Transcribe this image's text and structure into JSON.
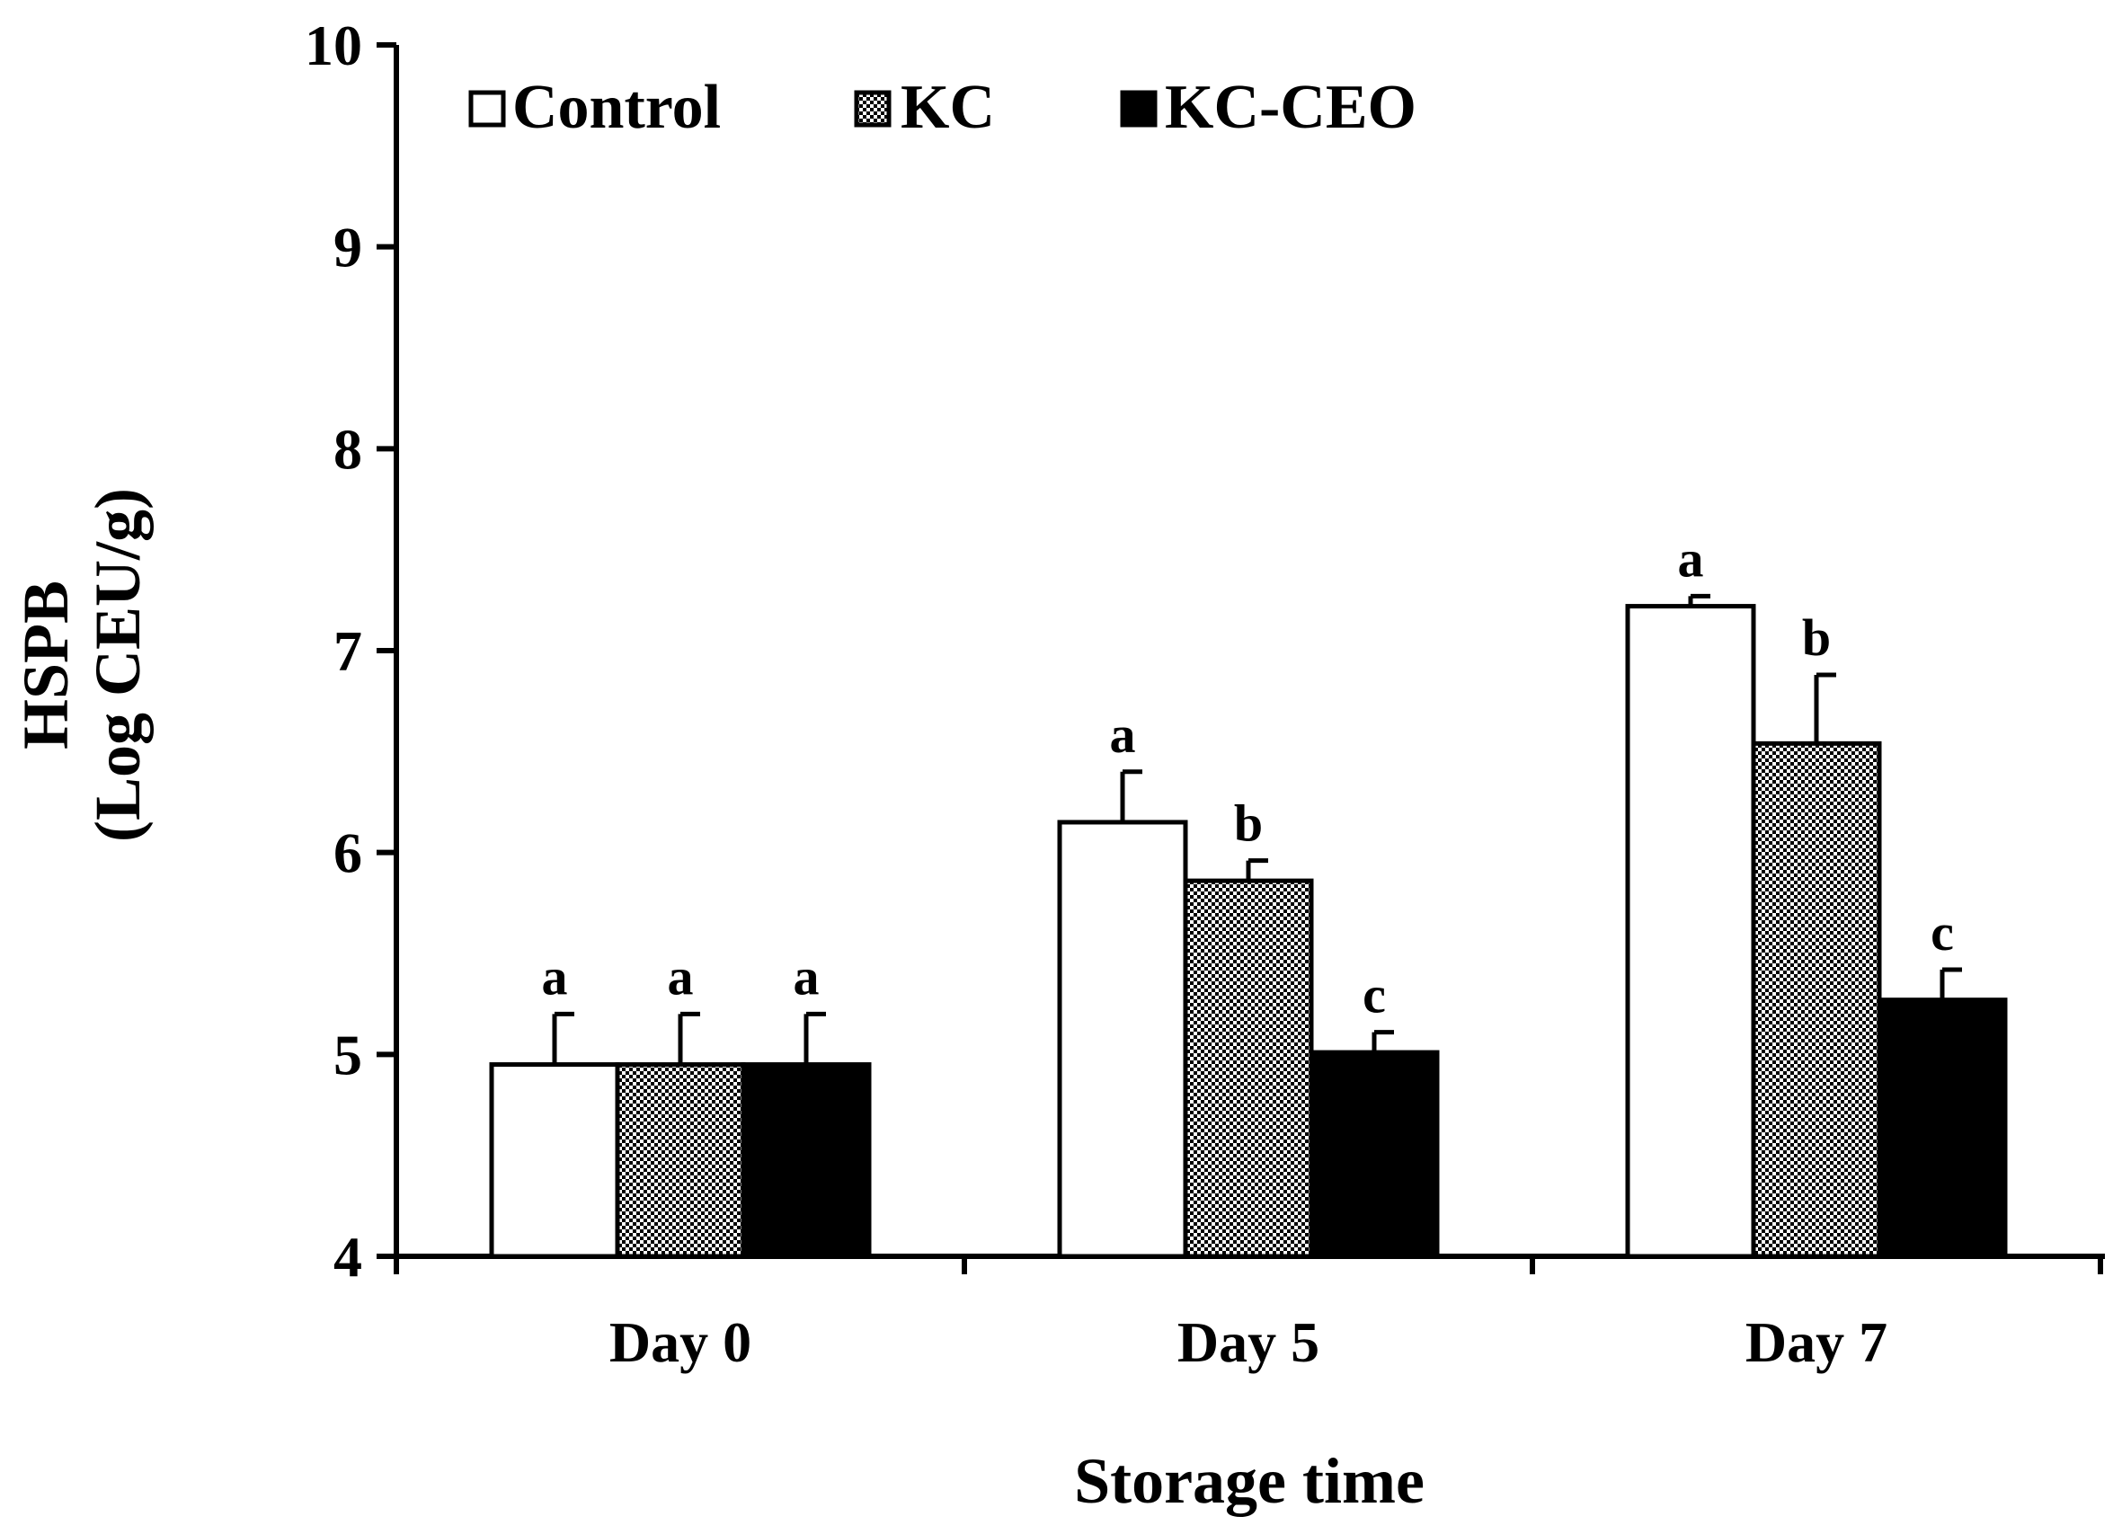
{
  "chart_data": {
    "type": "bar",
    "title": "",
    "xlabel": "Storage time",
    "ylabel_line1": "HSPB",
    "ylabel_line2": "(Log CEU/g)",
    "ylim": [
      4,
      10
    ],
    "yticks": [
      4,
      5,
      6,
      7,
      8,
      9,
      10
    ],
    "categories": [
      "Day 0",
      "Day 5",
      "Day 7"
    ],
    "legend_position": "top-left",
    "series": [
      {
        "name": "Control",
        "pattern": "hollow",
        "values": [
          4.95,
          6.15,
          7.22
        ],
        "errors": [
          0.25,
          0.25,
          0.05
        ],
        "significance": [
          "a",
          "a",
          "a"
        ]
      },
      {
        "name": "KC",
        "pattern": "dotted",
        "values": [
          4.95,
          5.86,
          6.54
        ],
        "errors": [
          0.25,
          0.1,
          0.34
        ],
        "significance": [
          "a",
          "b",
          "b"
        ]
      },
      {
        "name": "KC-CEO",
        "pattern": "solid",
        "values": [
          4.95,
          5.01,
          5.27
        ],
        "errors": [
          0.25,
          0.1,
          0.15
        ],
        "significance": [
          "a",
          "c",
          "c"
        ]
      }
    ],
    "colors": {
      "ink": "#000000",
      "background": "#ffffff"
    }
  }
}
